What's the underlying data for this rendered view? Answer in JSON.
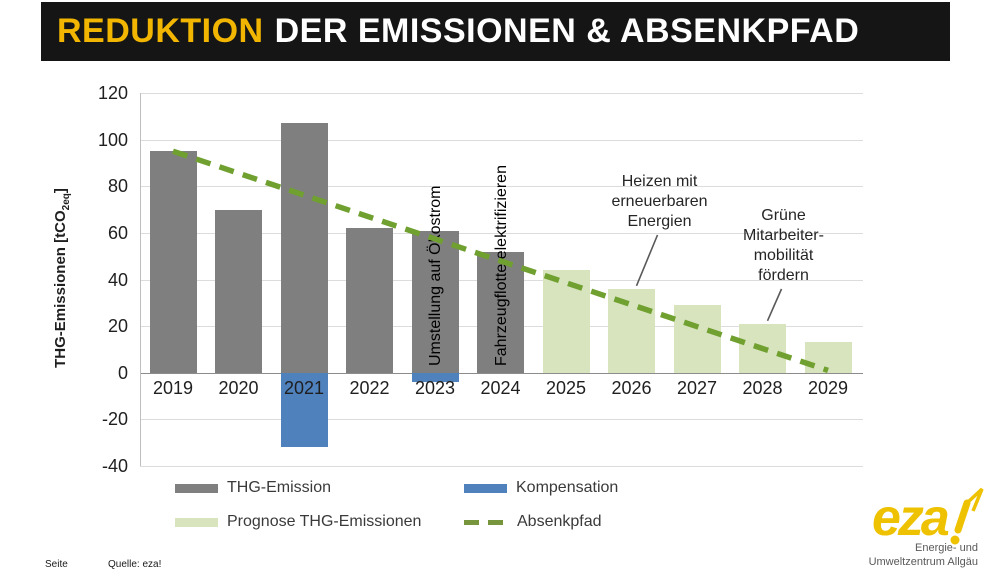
{
  "slide": {
    "title_highlight": "REDUKTION",
    "title_rest": "DER EMISSIONEN & ABSENKPFAD",
    "header_bg": "#151515",
    "highlight_color": "#F2B600"
  },
  "chart_data": {
    "type": "bar",
    "categories": [
      "2019",
      "2020",
      "2021",
      "2022",
      "2023",
      "2024",
      "2025",
      "2026",
      "2027",
      "2028",
      "2029"
    ],
    "series": [
      {
        "name": "THG-Emission",
        "type": "bar",
        "color": "#7F7F7F",
        "values": [
          95,
          70,
          107,
          62,
          61,
          52,
          null,
          null,
          null,
          null,
          null
        ]
      },
      {
        "name": "Kompensation",
        "type": "bar",
        "color": "#4F81BD",
        "values": [
          null,
          null,
          -32,
          null,
          -4,
          null,
          null,
          null,
          null,
          null,
          null
        ]
      },
      {
        "name": "Prognose THG-Emissionen",
        "type": "bar",
        "color": "#D7E4BD",
        "values": [
          null,
          null,
          null,
          null,
          null,
          null,
          44,
          36,
          29,
          21,
          13
        ]
      },
      {
        "name": "Absenkpfad",
        "type": "line",
        "style": "dashed",
        "color": "#70A02F",
        "x": [
          "2019",
          "2029"
        ],
        "values": [
          95,
          1
        ]
      }
    ],
    "ylabel_prefix": "THG-Emissionen [tCO",
    "ylabel_sub": "2eq",
    "ylabel_suffix": "]",
    "ylim": [
      -40,
      120
    ],
    "yticks": [
      120,
      100,
      80,
      60,
      40,
      20,
      0,
      -20,
      -40
    ],
    "grid": true,
    "legend_position": "bottom",
    "bar_labels": [
      {
        "category": "2023",
        "text": "Umstellung auf Ökostrom"
      },
      {
        "category": "2024",
        "text": "Fahrzeugflotte elektrifizieren"
      }
    ],
    "callouts": [
      {
        "lines": [
          "Heizen mit",
          "erneuerbaren",
          "Energien"
        ],
        "target": "2026"
      },
      {
        "lines": [
          "Grüne",
          "Mitarbeiter-",
          "mobilität",
          "fördern"
        ],
        "target": "2028"
      }
    ],
    "legend": [
      {
        "label": "THG-Emission",
        "swatch": "bar",
        "color": "#7F7F7F"
      },
      {
        "label": "Kompensation",
        "swatch": "bar",
        "color": "#4F81BD"
      },
      {
        "label": "Prognose THG-Emissionen",
        "swatch": "bar",
        "color": "#D7E4BD"
      },
      {
        "label": "Absenkpfad",
        "swatch": "dash",
        "color": "#76953D"
      }
    ]
  },
  "footer": {
    "page_label": "Seite",
    "source": "Quelle: eza!"
  },
  "logo": {
    "wordmark": "eza",
    "color": "#EEC200",
    "caption": [
      "Energie- und",
      "Umweltzentrum Allgäu"
    ]
  }
}
